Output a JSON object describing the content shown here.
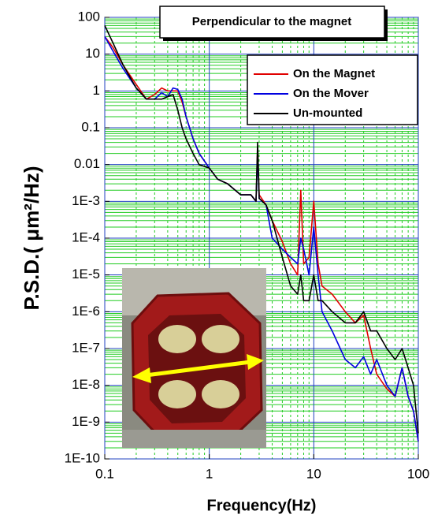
{
  "chart_data": {
    "type": "line",
    "title": "Perpendicular to the magnet",
    "xlabel": "Frequency(Hz)",
    "ylabel": "P.S.D.( μm²/Hz)",
    "xscale": "log",
    "yscale": "log",
    "xlim": [
      0.1,
      100
    ],
    "ylim": [
      1e-10,
      100
    ],
    "xticks": [
      0.1,
      1,
      10,
      100
    ],
    "yticks": [
      100,
      10,
      1,
      0.1,
      0.01,
      {
        "value": 0.001,
        "label": "1E-3"
      },
      {
        "value": 0.0001,
        "label": "1E-4"
      },
      {
        "value": 1e-05,
        "label": "1E-5"
      },
      {
        "value": 1e-06,
        "label": "1E-6"
      },
      {
        "value": 1e-07,
        "label": "1E-7"
      },
      {
        "value": 1e-08,
        "label": "1E-8"
      },
      {
        "value": 1e-09,
        "label": "1E-9"
      },
      {
        "value": 1e-10,
        "label": "1E-10"
      }
    ],
    "grid": true,
    "minor_grid": true,
    "legend": "upper right",
    "x": [
      0.1,
      0.12,
      0.15,
      0.2,
      0.25,
      0.3,
      0.35,
      0.4,
      0.45,
      0.5,
      0.55,
      0.6,
      0.7,
      0.8,
      1,
      1.2,
      1.5,
      2,
      2.5,
      2.8,
      2.9,
      3,
      3.5,
      4,
      5,
      6,
      7,
      7.5,
      8,
      9,
      10,
      11,
      12,
      15,
      20,
      25,
      30,
      35,
      40,
      50,
      60,
      70,
      80,
      90,
      100
    ],
    "series": [
      {
        "name": "On the Magnet",
        "color": "#e00000",
        "values": [
          30,
          15,
          5,
          1.5,
          0.6,
          0.8,
          1.2,
          1.0,
          1.0,
          1.0,
          0.5,
          0.2,
          0.05,
          0.02,
          0.008,
          0.004,
          0.003,
          0.0015,
          0.0015,
          0.001,
          0.03,
          0.0015,
          0.0008,
          0.0003,
          8e-05,
          2e-05,
          1e-05,
          0.002,
          2e-05,
          3e-05,
          0.001,
          2e-05,
          5e-06,
          3e-06,
          1e-06,
          5e-07,
          8e-07,
          1e-07,
          2e-08,
          8e-09,
          5e-09,
          3e-08,
          5e-09,
          2e-09,
          3e-10
        ]
      },
      {
        "name": "On the Mover",
        "color": "#0000e0",
        "values": [
          30,
          12,
          4,
          1.2,
          0.6,
          0.6,
          0.9,
          0.7,
          1.2,
          1.1,
          0.6,
          0.2,
          0.05,
          0.02,
          0.008,
          0.004,
          0.003,
          0.0015,
          0.0015,
          0.001,
          0.02,
          0.0012,
          0.0008,
          0.0001,
          5e-05,
          3e-05,
          2e-05,
          0.0001,
          5e-05,
          1e-05,
          0.0002,
          1e-05,
          1e-06,
          3e-07,
          5e-08,
          3e-08,
          6e-08,
          2e-08,
          5e-08,
          1e-08,
          5e-09,
          3e-08,
          5e-09,
          2e-09,
          3e-10
        ]
      },
      {
        "name": "Un-mounted",
        "color": "#000000",
        "values": [
          60,
          20,
          5,
          1.2,
          0.6,
          0.6,
          0.6,
          0.7,
          0.8,
          0.3,
          0.1,
          0.05,
          0.02,
          0.01,
          0.008,
          0.004,
          0.003,
          0.0015,
          0.0015,
          0.001,
          0.04,
          0.0012,
          0.0008,
          0.0003,
          3e-05,
          5e-06,
          3e-06,
          1e-05,
          2e-06,
          2e-06,
          1e-05,
          2e-06,
          2e-06,
          1e-06,
          5e-07,
          5e-07,
          1e-06,
          3e-07,
          3e-07,
          1e-07,
          5e-08,
          1e-07,
          3e-08,
          1e-08,
          5e-10
        ]
      }
    ]
  }
}
